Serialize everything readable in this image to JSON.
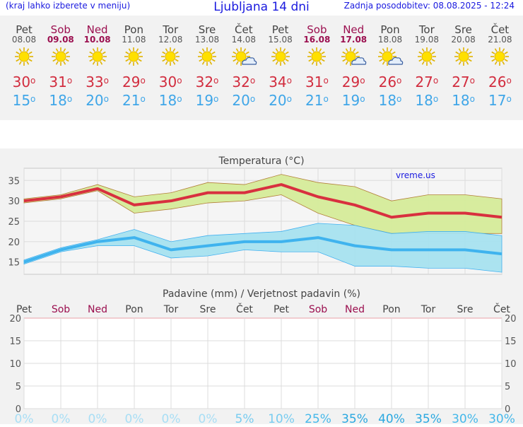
{
  "header": {
    "hint": "(kraj lahko izberete v meniju)",
    "title": "Ljubljana 14 dni",
    "updated": "Zadnja posodobitev: 08.08.2025 - 12:24"
  },
  "days": [
    {
      "name": "Pet",
      "date": "08.08",
      "weekend": false,
      "icon": "sun-icon",
      "max": "30",
      "min": "15"
    },
    {
      "name": "Sob",
      "date": "09.08",
      "weekend": true,
      "icon": "sun-icon",
      "max": "31",
      "min": "18"
    },
    {
      "name": "Ned",
      "date": "10.08",
      "weekend": true,
      "icon": "sun-icon",
      "max": "33",
      "min": "20"
    },
    {
      "name": "Pon",
      "date": "11.08",
      "weekend": false,
      "icon": "sun-icon",
      "max": "29",
      "min": "21"
    },
    {
      "name": "Tor",
      "date": "12.08",
      "weekend": false,
      "icon": "sun-icon",
      "max": "30",
      "min": "18"
    },
    {
      "name": "Sre",
      "date": "13.08",
      "weekend": false,
      "icon": "sun-icon",
      "max": "32",
      "min": "19"
    },
    {
      "name": "Čet",
      "date": "14.08",
      "weekend": false,
      "icon": "sun-cloud-icon",
      "max": "32",
      "min": "20"
    },
    {
      "name": "Pet",
      "date": "15.08",
      "weekend": false,
      "icon": "sun-icon",
      "max": "34",
      "min": "20"
    },
    {
      "name": "Sob",
      "date": "16.08",
      "weekend": true,
      "icon": "sun-icon",
      "max": "31",
      "min": "21"
    },
    {
      "name": "Ned",
      "date": "17.08",
      "weekend": true,
      "icon": "sun-cloud-icon",
      "max": "29",
      "min": "19"
    },
    {
      "name": "Pon",
      "date": "18.08",
      "weekend": false,
      "icon": "sun-cloud-icon",
      "max": "26",
      "min": "18"
    },
    {
      "name": "Tor",
      "date": "19.08",
      "weekend": false,
      "icon": "sun-icon",
      "max": "27",
      "min": "18"
    },
    {
      "name": "Sre",
      "date": "20.08",
      "weekend": false,
      "icon": "sun-icon",
      "max": "27",
      "min": "18"
    },
    {
      "name": "Čet",
      "date": "21.08",
      "weekend": false,
      "icon": "sun-icon",
      "max": "26",
      "min": "17"
    }
  ],
  "chart_data": [
    {
      "type": "area",
      "title": "Temperatura (°C)",
      "watermark": "vreme.us",
      "ylim": [
        12,
        38
      ],
      "yticks": [
        15,
        20,
        25,
        30,
        35
      ],
      "grid": true,
      "series": [
        {
          "color": "#d8303f",
          "values": [
            30,
            31,
            33,
            29,
            30,
            32,
            32,
            34,
            31,
            29,
            26,
            27,
            27,
            26
          ],
          "band_upper": [
            30.5,
            31.5,
            34,
            31,
            32,
            34.5,
            34,
            36.5,
            34.5,
            33.5,
            30,
            31.5,
            31.5,
            30.5
          ],
          "band_lower": [
            29.5,
            30.5,
            32.5,
            27,
            28,
            29.5,
            30,
            31.5,
            27,
            24,
            22,
            22,
            22,
            22
          ]
        },
        {
          "color": "#3fb3ee",
          "values": [
            15,
            18,
            20,
            21,
            18,
            19,
            20,
            20,
            21,
            19,
            18,
            18,
            18,
            17
          ],
          "band_upper": [
            15.5,
            18.5,
            20.5,
            23,
            20,
            21.5,
            22,
            22.5,
            24.5,
            24,
            22,
            22.5,
            22.5,
            21.5
          ],
          "band_lower": [
            14.5,
            17.5,
            19,
            19,
            16,
            16.5,
            18,
            17.5,
            17.5,
            14,
            14,
            13.5,
            13.5,
            12.5
          ]
        }
      ]
    },
    {
      "type": "bar",
      "title": "Padavine (mm) / Verjetnost padavin (%)",
      "categories": [
        "Pet",
        "Sob",
        "Ned",
        "Pon",
        "Tor",
        "Sre",
        "Čet",
        "Pet",
        "Sob",
        "Ned",
        "Pon",
        "Tor",
        "Sre",
        "Čet"
      ],
      "weekend": [
        false,
        true,
        true,
        false,
        false,
        false,
        false,
        false,
        true,
        true,
        false,
        false,
        false,
        false
      ],
      "ylim": [
        0,
        20
      ],
      "yticks": [
        0,
        5,
        10,
        15,
        20
      ],
      "values": [
        0,
        0,
        0,
        0,
        0,
        0,
        0,
        0,
        0,
        0,
        0,
        0,
        0,
        0
      ],
      "probability": [
        "0%",
        "0%",
        "0%",
        "0%",
        "0%",
        "0%",
        "5%",
        "10%",
        "25%",
        "35%",
        "40%",
        "35%",
        "30%",
        "30%"
      ],
      "probability_values": [
        0,
        0,
        0,
        0,
        0,
        0,
        5,
        10,
        25,
        35,
        40,
        35,
        30,
        30
      ],
      "grid": true
    }
  ]
}
